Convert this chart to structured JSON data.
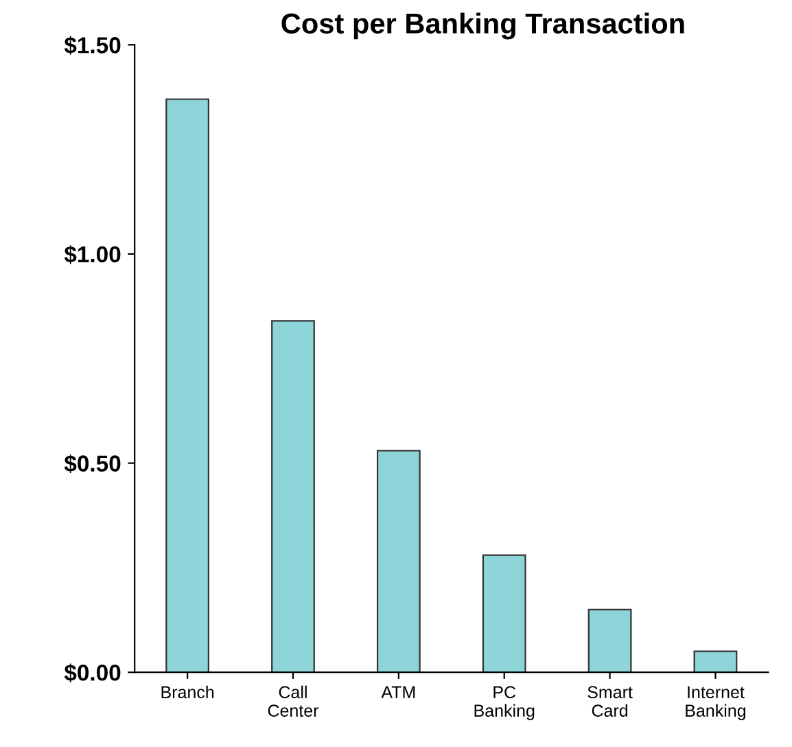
{
  "chart_data": {
    "type": "bar",
    "title": "Cost per Banking Transaction",
    "categories": [
      "Branch",
      "Call\nCenter",
      "ATM",
      "PC\nBanking",
      "Smart\nCard",
      "Internet\nBanking"
    ],
    "values": [
      1.37,
      0.84,
      0.53,
      0.28,
      0.15,
      0.05
    ],
    "color": "#8dd5d8",
    "ylim": [
      0,
      1.5
    ],
    "yticks": [
      {
        "value": 0,
        "label": "$0.00"
      },
      {
        "value": 0.5,
        "label": "$0.50"
      },
      {
        "value": 1.0,
        "label": "$1.00"
      },
      {
        "value": 1.5,
        "label": "$1.50"
      }
    ],
    "grid": false
  }
}
